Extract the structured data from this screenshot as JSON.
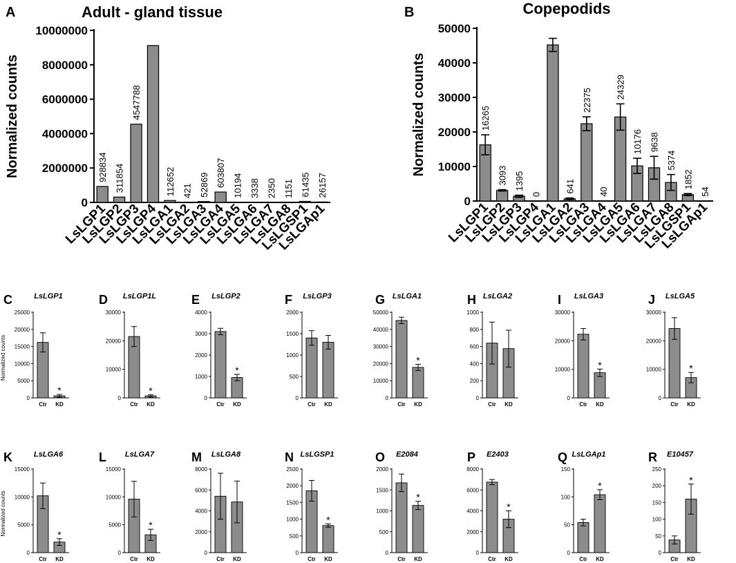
{
  "chart_data": [
    {
      "panel": "A",
      "type": "bar",
      "title": "Adult - gland tissue",
      "ylabel": "Normalized counts",
      "ylim": [
        0,
        10000000
      ],
      "yticks": [
        0,
        2000000,
        4000000,
        6000000,
        8000000,
        10000000
      ],
      "ytick_labels": [
        "0",
        "2000000",
        "4000000",
        "6000000",
        "8000000",
        "10000000"
      ],
      "categories": [
        "LsLGP1",
        "LsLGP2",
        "LsLGP3",
        "LsLGP4",
        "LsLGA1",
        "LsLGA2",
        "LsLGA3",
        "LsLGA4",
        "LsLGA5",
        "LsLGA6",
        "LsLGA7",
        "LsLGA8",
        "LsLGSP1",
        "LsLGAp1"
      ],
      "values": [
        928834,
        311854,
        4547788,
        9120000,
        112652,
        421,
        52869,
        603807,
        10194,
        3338,
        2350,
        1151,
        61435,
        26157
      ],
      "value_labels": [
        "928834",
        "311854",
        "4547788",
        "",
        "112652",
        "421",
        "52869",
        "603807",
        "10194",
        "3338",
        "2350",
        "1151",
        "61435",
        "26157"
      ],
      "errors": []
    },
    {
      "panel": "B",
      "type": "bar",
      "title": "Copepodids",
      "ylabel": "Normalized counts",
      "ylim": [
        0,
        50000
      ],
      "yticks": [
        0,
        10000,
        20000,
        30000,
        40000,
        50000
      ],
      "ytick_labels": [
        "0",
        "10000",
        "20000",
        "30000",
        "40000",
        "50000"
      ],
      "categories": [
        "LsLGP1",
        "LsLGP2",
        "LsLGP3",
        "LsLGP4",
        "LsLGA1",
        "LsLGA2",
        "LsLGA3",
        "LsLGA4",
        "LsLGA5",
        "LsLGA6",
        "LsLGA7",
        "LsLGA8",
        "LsLGSP1",
        "LsLGAp1"
      ],
      "values": [
        16265,
        3093,
        1395,
        0,
        45200,
        641,
        22375,
        40,
        24329,
        10176,
        9638,
        5374,
        1852,
        54
      ],
      "value_labels": [
        "16265",
        "3093",
        "1395",
        "0",
        "",
        "641",
        "22375",
        "40",
        "24329",
        "10176",
        "9638",
        "5374",
        "1852",
        "54"
      ],
      "errors": [
        2900,
        200,
        300,
        0,
        1900,
        250,
        2000,
        0,
        3800,
        2200,
        3300,
        2300,
        300,
        0
      ]
    },
    {
      "panel": "C",
      "type": "bar",
      "title": "LsLGP1",
      "ylabel": "Normalized counts",
      "ylim": [
        0,
        25000
      ],
      "yticks": [
        0,
        5000,
        10000,
        15000,
        20000,
        25000
      ],
      "ytick_labels": [
        "0",
        "5000",
        "10000",
        "15000",
        "20000",
        "25000"
      ],
      "categories": [
        "Ctr",
        "KD"
      ],
      "values": [
        16200,
        600
      ],
      "errors": [
        2800,
        400
      ],
      "significant": [
        false,
        true
      ]
    },
    {
      "panel": "D",
      "type": "bar",
      "title": "LsLGP1L",
      "ylabel": "",
      "ylim": [
        0,
        30000
      ],
      "yticks": [
        0,
        10000,
        20000,
        30000
      ],
      "ytick_labels": [
        "0",
        "10000",
        "20000",
        "30000"
      ],
      "categories": [
        "Ctr",
        "KD"
      ],
      "values": [
        21500,
        700
      ],
      "errors": [
        3500,
        400
      ],
      "significant": [
        false,
        true
      ]
    },
    {
      "panel": "E",
      "type": "bar",
      "title": "LsLGP2",
      "ylabel": "",
      "ylim": [
        0,
        4000
      ],
      "yticks": [
        0,
        1000,
        2000,
        3000,
        4000
      ],
      "ytick_labels": [
        "0",
        "1000",
        "2000",
        "3000",
        "4000"
      ],
      "categories": [
        "Ctr",
        "KD"
      ],
      "values": [
        3100,
        950
      ],
      "errors": [
        150,
        150
      ],
      "significant": [
        false,
        true
      ]
    },
    {
      "panel": "F",
      "type": "bar",
      "title": "LsLGP3",
      "ylabel": "",
      "ylim": [
        0,
        2000
      ],
      "yticks": [
        0,
        500,
        1000,
        1500,
        2000
      ],
      "ytick_labels": [
        "0",
        "500",
        "1000",
        "1500",
        "2000"
      ],
      "categories": [
        "Ctr",
        "KD"
      ],
      "values": [
        1400,
        1300
      ],
      "errors": [
        170,
        160
      ],
      "significant": [
        false,
        false
      ]
    },
    {
      "panel": "G",
      "type": "bar",
      "title": "LsLGA1",
      "ylabel": "",
      "ylim": [
        0,
        50000
      ],
      "yticks": [
        0,
        10000,
        20000,
        30000,
        40000,
        50000
      ],
      "ytick_labels": [
        "0",
        "10000",
        "20000",
        "30000",
        "40000",
        "50000"
      ],
      "categories": [
        "Ctr",
        "KD"
      ],
      "values": [
        45200,
        17800
      ],
      "errors": [
        1900,
        1800
      ],
      "significant": [
        false,
        true
      ]
    },
    {
      "panel": "H",
      "type": "bar",
      "title": "LsLGA2",
      "ylabel": "",
      "ylim": [
        0,
        1000
      ],
      "yticks": [
        0,
        200,
        400,
        600,
        800,
        1000
      ],
      "ytick_labels": [
        "0",
        "200",
        "400",
        "600",
        "800",
        "1000"
      ],
      "categories": [
        "Ctr",
        "KD"
      ],
      "values": [
        640,
        575
      ],
      "errors": [
        245,
        215
      ],
      "significant": [
        false,
        false
      ]
    },
    {
      "panel": "I",
      "type": "bar",
      "title": "LsLGA3",
      "ylabel": "",
      "ylim": [
        0,
        30000
      ],
      "yticks": [
        0,
        10000,
        20000,
        30000
      ],
      "ytick_labels": [
        "0",
        "10000",
        "20000",
        "30000"
      ],
      "categories": [
        "Ctr",
        "KD"
      ],
      "values": [
        22300,
        8800
      ],
      "errors": [
        2000,
        1300
      ],
      "significant": [
        false,
        true
      ]
    },
    {
      "panel": "J",
      "type": "bar",
      "title": "LsLGA5",
      "ylabel": "",
      "ylim": [
        0,
        30000
      ],
      "yticks": [
        0,
        10000,
        20000,
        30000
      ],
      "ytick_labels": [
        "0",
        "10000",
        "20000",
        "30000"
      ],
      "categories": [
        "Ctr",
        "KD"
      ],
      "values": [
        24300,
        7100
      ],
      "errors": [
        3800,
        1800
      ],
      "significant": [
        false,
        true
      ]
    },
    {
      "panel": "K",
      "type": "bar",
      "title": "LsLGA6",
      "ylabel": "Normalized counts",
      "ylim": [
        0,
        15000
      ],
      "yticks": [
        0,
        5000,
        10000,
        15000
      ],
      "ytick_labels": [
        "0",
        "5000",
        "10000",
        "15000"
      ],
      "categories": [
        "Ctr",
        "KD"
      ],
      "values": [
        10200,
        1900
      ],
      "errors": [
        2300,
        600
      ],
      "significant": [
        false,
        true
      ]
    },
    {
      "panel": "L",
      "type": "bar",
      "title": "LsLGA7",
      "ylabel": "",
      "ylim": [
        0,
        15000
      ],
      "yticks": [
        0,
        5000,
        10000,
        15000
      ],
      "ytick_labels": [
        "0",
        "5000",
        "10000",
        "15000"
      ],
      "categories": [
        "Ctr",
        "KD"
      ],
      "values": [
        9600,
        3200
      ],
      "errors": [
        3200,
        1000
      ],
      "significant": [
        false,
        true
      ]
    },
    {
      "panel": "M",
      "type": "bar",
      "title": "LsLGA8",
      "ylabel": "",
      "ylim": [
        0,
        8000
      ],
      "yticks": [
        0,
        2000,
        4000,
        6000,
        8000
      ],
      "ytick_labels": [
        "0",
        "2000",
        "4000",
        "6000",
        "8000"
      ],
      "categories": [
        "Ctr",
        "KD"
      ],
      "values": [
        5400,
        4850
      ],
      "errors": [
        2200,
        2000
      ],
      "significant": [
        false,
        false
      ]
    },
    {
      "panel": "N",
      "type": "bar",
      "title": "LsLGSP1",
      "ylabel": "",
      "ylim": [
        0,
        2500
      ],
      "yticks": [
        0,
        500,
        1000,
        1500,
        2000,
        2500
      ],
      "ytick_labels": [
        "0",
        "500",
        "1000",
        "1500",
        "2000",
        "2500"
      ],
      "categories": [
        "Ctr",
        "KD"
      ],
      "values": [
        1850,
        810
      ],
      "errors": [
        310,
        50
      ],
      "significant": [
        false,
        true
      ]
    },
    {
      "panel": "O",
      "type": "bar",
      "title": "E2084",
      "ylabel": "",
      "ylim": [
        0,
        2000
      ],
      "yticks": [
        0,
        500,
        1000,
        1500,
        2000
      ],
      "ytick_labels": [
        "0",
        "500",
        "1000",
        "1500",
        "2000"
      ],
      "categories": [
        "Ctr",
        "KD"
      ],
      "values": [
        1670,
        1130
      ],
      "errors": [
        210,
        100
      ],
      "significant": [
        false,
        true
      ]
    },
    {
      "panel": "P",
      "type": "bar",
      "title": "E2403",
      "ylabel": "",
      "ylim": [
        0,
        8000
      ],
      "yticks": [
        0,
        2000,
        4000,
        6000,
        8000
      ],
      "ytick_labels": [
        "0",
        "2000",
        "4000",
        "6000",
        "8000"
      ],
      "categories": [
        "Ctr",
        "KD"
      ],
      "values": [
        6750,
        3200
      ],
      "errors": [
        250,
        800
      ],
      "significant": [
        false,
        true
      ]
    },
    {
      "panel": "Q",
      "type": "bar",
      "title": "LsLGAp1",
      "ylabel": "",
      "ylim": [
        0,
        150
      ],
      "yticks": [
        0,
        50,
        100,
        150
      ],
      "ytick_labels": [
        "0",
        "50",
        "100",
        "150"
      ],
      "categories": [
        "Ctr",
        "KD"
      ],
      "values": [
        54,
        104
      ],
      "errors": [
        6,
        9
      ],
      "significant": [
        false,
        true
      ]
    },
    {
      "panel": "R",
      "type": "bar",
      "title": "E10457",
      "ylabel": "",
      "ylim": [
        0,
        250
      ],
      "yticks": [
        0,
        50,
        100,
        150,
        200,
        250
      ],
      "ytick_labels": [
        "0",
        "50",
        "100",
        "150",
        "200",
        "250"
      ],
      "categories": [
        "Ctr",
        "KD"
      ],
      "values": [
        38,
        160
      ],
      "errors": [
        12,
        45
      ],
      "significant": [
        false,
        true
      ]
    }
  ],
  "significance_marker": "*"
}
